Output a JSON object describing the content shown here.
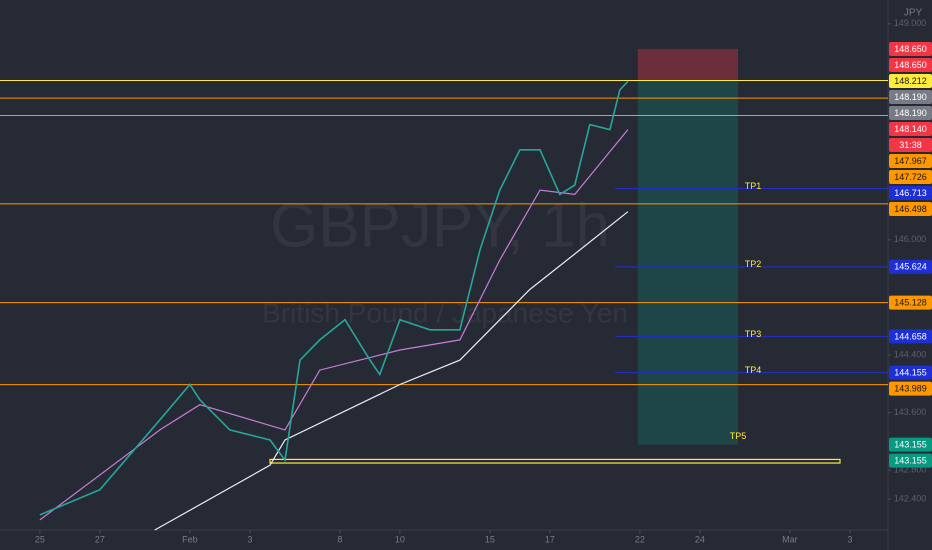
{
  "chart_data": {
    "type": "line",
    "watermark": "GBPJPY, 1h",
    "subtitle": "British Pound / Japanese Yen",
    "currency": "JPY",
    "xlim": [
      -1.33,
      28.27
    ],
    "xticks": [
      {
        "value": 0,
        "label": "25"
      },
      {
        "value": 2,
        "label": "27"
      },
      {
        "value": 5,
        "label": "Feb"
      },
      {
        "value": 7,
        "label": "3"
      },
      {
        "value": 10,
        "label": "8"
      },
      {
        "value": 12,
        "label": "10"
      },
      {
        "value": 15,
        "label": "15"
      },
      {
        "value": 17,
        "label": "17"
      },
      {
        "value": 20,
        "label": "22"
      },
      {
        "value": 22,
        "label": "24"
      },
      {
        "value": 25,
        "label": "Mar"
      },
      {
        "value": 27,
        "label": "3"
      }
    ],
    "ylim": [
      141.97,
      149.33
    ],
    "yticks": [
      {
        "value": 149,
        "label": "149.000"
      },
      {
        "value": 146,
        "label": "146.000"
      },
      {
        "value": 144.4,
        "label": "144.400"
      },
      {
        "value": 143.6,
        "label": "143.600"
      },
      {
        "value": 142.8,
        "label": "142.800"
      },
      {
        "value": 142.4,
        "label": "142.400"
      }
    ],
    "series": [
      {
        "name": "GBPJPY",
        "color": "#26a69a",
        "x": [
          0,
          2,
          4,
          5,
          5.33,
          6.33,
          7.67,
          8.17,
          8.67,
          9.33,
          10.17,
          11,
          11.33,
          12,
          13,
          14,
          14.67,
          15.33,
          16,
          16.67,
          17.33,
          17.83,
          18.33,
          19,
          19.33,
          19.6
        ],
        "values": [
          142.18,
          142.53,
          143.5,
          143.99,
          143.78,
          143.36,
          143.22,
          142.94,
          144.33,
          144.61,
          144.89,
          144.33,
          144.13,
          144.89,
          144.75,
          144.75,
          145.86,
          146.69,
          147.25,
          147.25,
          146.63,
          146.76,
          147.6,
          147.53,
          148.08,
          148.2
        ]
      },
      {
        "name": "MA",
        "color": "#c77dd8",
        "x": [
          0,
          4,
          5.33,
          8.17,
          9.33,
          12,
          14,
          15.33,
          16.67,
          17.83,
          19.6
        ],
        "values": [
          142.11,
          143.36,
          143.71,
          143.36,
          144.19,
          144.47,
          144.61,
          145.72,
          146.69,
          146.63,
          147.53
        ]
      },
      {
        "name": "MA 200",
        "color": "#e8eef2",
        "x": [
          3.83,
          7.67,
          8.17,
          12,
          14,
          16.33,
          18,
          19.6
        ],
        "values": [
          141.97,
          142.87,
          143.22,
          143.99,
          144.33,
          145.31,
          145.86,
          146.39
        ]
      }
    ],
    "levels": [
      {
        "value": 148.212,
        "color": "#ffeb3b"
      },
      {
        "value": 147.967,
        "color": "#ff9800"
      },
      {
        "value": 147.726,
        "color": "#ff9800"
      },
      {
        "value": 146.498,
        "color": "#ff9800"
      },
      {
        "value": 145.128,
        "color": "#ff9800"
      },
      {
        "value": 143.989,
        "color": "#ff9800"
      }
    ],
    "targets": [
      {
        "label": "TP1",
        "value": 146.713,
        "x0": 19.17,
        "color": "#2230c8"
      },
      {
        "label": "TP2",
        "value": 145.624,
        "x0": 19.17,
        "color": "#2230c8"
      },
      {
        "label": "TP3",
        "value": 144.658,
        "x0": 19.17,
        "color": "#2230c8"
      },
      {
        "label": "TP4",
        "value": 144.155,
        "x0": 19.17,
        "color": "#2230c8"
      },
      {
        "label": "TP5",
        "value": 143.155,
        "color": "#2230c8"
      }
    ],
    "position": {
      "entry": 148.212,
      "stop": 148.65,
      "target": 143.155,
      "x": [
        19.93,
        23.27
      ]
    },
    "zone": {
      "top": 142.95,
      "bottom": 142.9,
      "x": [
        7.67,
        26.67
      ],
      "color": "#ffeb3b"
    },
    "price_tags": [
      {
        "value": 148.65,
        "label": "148.650",
        "color": "#f23645"
      },
      {
        "value": 148.65,
        "label": "148.650",
        "color": "#f23645"
      },
      {
        "value": 148.212,
        "label": "148.212",
        "color": "#ffeb3b"
      },
      {
        "value": 148.19,
        "label": "148.190",
        "color": "#787b86"
      },
      {
        "value": 148.19,
        "label": "148.190",
        "color": "#787b86"
      },
      {
        "value": 148.14,
        "label": "148.140",
        "color": "#f23645"
      },
      {
        "value": 147.967,
        "label": "147.967",
        "color": "#ff9800"
      },
      {
        "value": 147.726,
        "label": "147.726",
        "color": "#ff9800"
      },
      {
        "value": 146.713,
        "label": "146.713",
        "color": "#1e2fd6"
      },
      {
        "value": 146.498,
        "label": "146.498",
        "color": "#ff9800"
      },
      {
        "value": 145.624,
        "label": "145.624",
        "color": "#1e2fd6"
      },
      {
        "value": 145.128,
        "label": "145.128",
        "color": "#ff9800"
      },
      {
        "value": 144.658,
        "label": "144.658",
        "color": "#1e2fd6"
      },
      {
        "value": 144.155,
        "label": "144.155",
        "color": "#1e2fd6"
      },
      {
        "value": 143.989,
        "label": "143.989",
        "color": "#ff9800"
      },
      {
        "value": 143.155,
        "label": "143.155",
        "color": "#089981"
      },
      {
        "value": 143.155,
        "label": "143.155",
        "color": "#089981"
      }
    ],
    "countdown": "31:38"
  }
}
